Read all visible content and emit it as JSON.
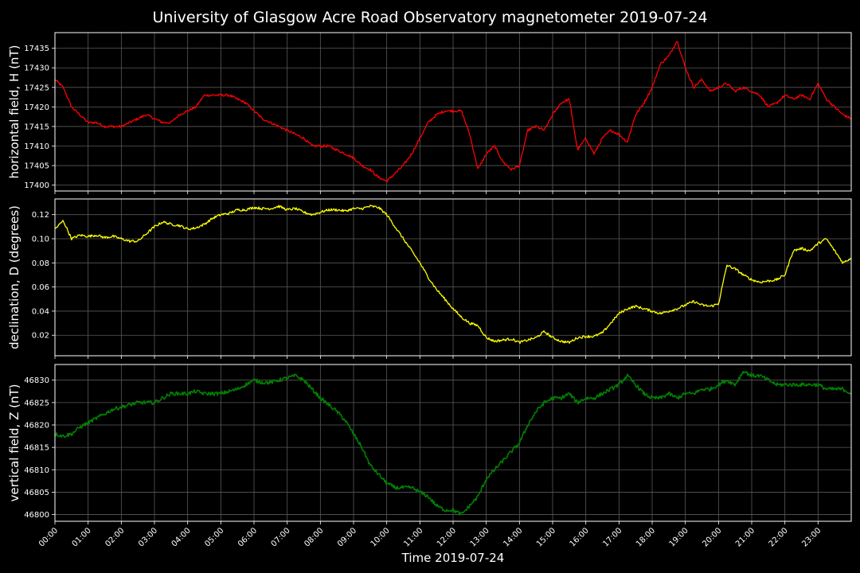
{
  "chart_data": {
    "type": "line",
    "title": "University of Glasgow Acre Road Observatory magnetometer 2019-07-24",
    "xlabel": "Time 2019-07-24",
    "x_ticks": [
      "00:00",
      "01:00",
      "02:00",
      "03:00",
      "04:00",
      "05:00",
      "06:00",
      "07:00",
      "08:00",
      "09:00",
      "10:00",
      "11:00",
      "12:00",
      "13:00",
      "14:00",
      "15:00",
      "16:00",
      "17:00",
      "18:00",
      "19:00",
      "20:00",
      "21:00",
      "22:00",
      "23:00"
    ],
    "xlim_hours": [
      0,
      24
    ],
    "grid": true,
    "panels": [
      {
        "ylabel": "horizontal field, H (nT)",
        "color": "#ff0000",
        "ylim": [
          17398.5,
          17439
        ],
        "yticks": [
          17400,
          17405,
          17410,
          17415,
          17420,
          17425,
          17430,
          17435
        ],
        "x": [
          0,
          0.25,
          0.5,
          0.75,
          1,
          1.25,
          1.5,
          1.75,
          2,
          2.25,
          2.5,
          2.75,
          3,
          3.25,
          3.5,
          3.75,
          4,
          4.25,
          4.5,
          4.75,
          5,
          5.25,
          5.5,
          5.75,
          6,
          6.25,
          6.5,
          6.75,
          7,
          7.25,
          7.5,
          7.75,
          8,
          8.25,
          8.5,
          8.75,
          9,
          9.25,
          9.5,
          9.75,
          10,
          10.25,
          10.5,
          10.75,
          11,
          11.25,
          11.5,
          11.75,
          12,
          12.25,
          12.5,
          12.75,
          13,
          13.25,
          13.5,
          13.75,
          14,
          14.25,
          14.5,
          14.75,
          15,
          15.25,
          15.5,
          15.75,
          16,
          16.25,
          16.5,
          16.75,
          17,
          17.25,
          17.5,
          17.75,
          18,
          18.25,
          18.5,
          18.75,
          19,
          19.25,
          19.5,
          19.75,
          20,
          20.25,
          20.5,
          20.75,
          21,
          21.25,
          21.5,
          21.75,
          22,
          22.25,
          22.5,
          22.75,
          23,
          23.25,
          23.5,
          23.75,
          24
        ],
        "values": [
          17427,
          17425,
          17420,
          17418,
          17416,
          17416,
          17415,
          17415,
          17415,
          17416,
          17417,
          17418,
          17417,
          17416,
          17416,
          17418,
          17419,
          17420,
          17423,
          17423,
          17423,
          17423,
          17422,
          17421,
          17419,
          17417,
          17416,
          17415,
          17414,
          17413,
          17412,
          17410,
          17410,
          17410,
          17409,
          17408,
          17407,
          17405,
          17404,
          17402,
          17401,
          17403,
          17405,
          17408,
          17412,
          17416,
          17418,
          17419,
          17419,
          17419,
          17413,
          17404,
          17408,
          17410,
          17406,
          17404,
          17405,
          17414,
          17415,
          17414,
          17418,
          17421,
          17422,
          17409,
          17412,
          17408,
          17412,
          17414,
          17413,
          17411,
          17418,
          17421,
          17425,
          17431,
          17433,
          17437,
          17430,
          17425,
          17427,
          17424,
          17425,
          17426,
          17424,
          17425,
          17424,
          17423,
          17420,
          17421,
          17423,
          17422,
          17423,
          17422,
          17426,
          17422,
          17420,
          17418,
          17417
        ]
      },
      {
        "ylabel": "declination, D (degrees)",
        "color": "#ffff00",
        "ylim": [
          0.003,
          0.133
        ],
        "yticks": [
          0.02,
          0.04,
          0.06,
          0.08,
          0.1,
          0.12
        ],
        "yticklabels": [
          "0.02",
          "0.04",
          "0.06",
          "0.08",
          "0.10",
          "0.12"
        ],
        "x": [
          0,
          0.25,
          0.5,
          0.75,
          1,
          1.25,
          1.5,
          1.75,
          2,
          2.25,
          2.5,
          2.75,
          3,
          3.25,
          3.5,
          3.75,
          4,
          4.25,
          4.5,
          4.75,
          5,
          5.25,
          5.5,
          5.75,
          6,
          6.25,
          6.5,
          6.75,
          7,
          7.25,
          7.5,
          7.75,
          8,
          8.25,
          8.5,
          8.75,
          9,
          9.25,
          9.5,
          9.75,
          10,
          10.25,
          10.5,
          10.75,
          11,
          11.25,
          11.5,
          11.75,
          12,
          12.25,
          12.5,
          12.75,
          13,
          13.25,
          13.5,
          13.75,
          14,
          14.25,
          14.5,
          14.75,
          15,
          15.25,
          15.5,
          15.75,
          16,
          16.25,
          16.5,
          16.75,
          17,
          17.25,
          17.5,
          17.75,
          18,
          18.25,
          18.5,
          18.75,
          19,
          19.25,
          19.5,
          19.75,
          20,
          20.25,
          20.5,
          20.75,
          21,
          21.25,
          21.5,
          21.75,
          22,
          22.25,
          22.5,
          22.75,
          23,
          23.25,
          23.5,
          23.75,
          24
        ],
        "values": [
          0.108,
          0.115,
          0.1,
          0.103,
          0.102,
          0.103,
          0.101,
          0.102,
          0.1,
          0.098,
          0.098,
          0.104,
          0.11,
          0.114,
          0.112,
          0.111,
          0.108,
          0.109,
          0.112,
          0.117,
          0.12,
          0.121,
          0.124,
          0.124,
          0.126,
          0.125,
          0.125,
          0.127,
          0.124,
          0.125,
          0.122,
          0.12,
          0.122,
          0.124,
          0.124,
          0.123,
          0.125,
          0.125,
          0.127,
          0.126,
          0.12,
          0.11,
          0.1,
          0.09,
          0.08,
          0.068,
          0.058,
          0.05,
          0.042,
          0.035,
          0.03,
          0.028,
          0.018,
          0.015,
          0.016,
          0.017,
          0.014,
          0.016,
          0.018,
          0.023,
          0.018,
          0.015,
          0.014,
          0.018,
          0.019,
          0.019,
          0.022,
          0.03,
          0.038,
          0.042,
          0.044,
          0.042,
          0.04,
          0.038,
          0.04,
          0.042,
          0.045,
          0.048,
          0.045,
          0.044,
          0.046,
          0.078,
          0.075,
          0.07,
          0.066,
          0.064,
          0.065,
          0.066,
          0.07,
          0.09,
          0.092,
          0.09,
          0.096,
          0.1,
          0.09,
          0.08,
          0.084
        ]
      },
      {
        "ylabel": "vertical field, Z (nT)",
        "color": "#008000",
        "ylim": [
          46798.5,
          46833.5
        ],
        "yticks": [
          46800,
          46805,
          46810,
          46815,
          46820,
          46825,
          46830
        ],
        "x": [
          0,
          0.25,
          0.5,
          0.75,
          1,
          1.25,
          1.5,
          1.75,
          2,
          2.25,
          2.5,
          2.75,
          3,
          3.25,
          3.5,
          3.75,
          4,
          4.25,
          4.5,
          4.75,
          5,
          5.25,
          5.5,
          5.75,
          6,
          6.25,
          6.5,
          6.75,
          7,
          7.25,
          7.5,
          7.75,
          8,
          8.25,
          8.5,
          8.75,
          9,
          9.25,
          9.5,
          9.75,
          10,
          10.25,
          10.5,
          10.75,
          11,
          11.25,
          11.5,
          11.75,
          12,
          12.25,
          12.5,
          12.75,
          13,
          13.25,
          13.5,
          13.75,
          14,
          14.25,
          14.5,
          14.75,
          15,
          15.25,
          15.5,
          15.75,
          16,
          16.25,
          16.5,
          16.75,
          17,
          17.25,
          17.5,
          17.75,
          18,
          18.25,
          18.5,
          18.75,
          19,
          19.25,
          19.5,
          19.75,
          20,
          20.25,
          20.5,
          20.75,
          21,
          21.25,
          21.5,
          21.75,
          22,
          22.25,
          22.5,
          22.75,
          23,
          23.25,
          23.5,
          23.75,
          24
        ],
        "values": [
          46818,
          46817.5,
          46818,
          46819.5,
          46820.5,
          46821.5,
          46822.5,
          46823.5,
          46824,
          46824.5,
          46825,
          46825,
          46825,
          46826,
          46827,
          46827,
          46827,
          46827.5,
          46827,
          46827,
          46827,
          46827.5,
          46828,
          46829,
          46830,
          46829.5,
          46829.5,
          46830,
          46830.5,
          46831,
          46830,
          46828,
          46826,
          46824.5,
          46823,
          46821,
          46818,
          46815,
          46811,
          46809,
          46807,
          46806,
          46806,
          46806,
          46805,
          46804,
          46802,
          46801,
          46801,
          46800,
          46802,
          46804,
          46808,
          46810,
          46812,
          46814,
          46816,
          46820,
          46823,
          46825,
          46826,
          46826,
          46827,
          46825,
          46826,
          46826,
          46827,
          46828,
          46829,
          46831,
          46829,
          46827,
          46826,
          46826,
          46827,
          46826,
          46827,
          46827,
          46828,
          46828,
          46829,
          46830,
          46829,
          46832,
          46831,
          46831,
          46830,
          46829,
          46829,
          46829,
          46829,
          46829,
          46829,
          46828,
          46828,
          46828,
          46827
        ]
      }
    ]
  }
}
